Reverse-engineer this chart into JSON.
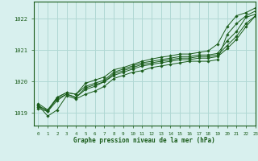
{
  "background_color": "#d8f0ee",
  "grid_color": "#b0d8d4",
  "line_color": "#1a5c1a",
  "xlabel": "Graphe pression niveau de la mer (hPa)",
  "xlim": [
    -0.5,
    23
  ],
  "ylim": [
    1018.6,
    1022.55
  ],
  "yticks": [
    1019,
    1020,
    1021,
    1022
  ],
  "xticks": [
    0,
    1,
    2,
    3,
    4,
    5,
    6,
    7,
    8,
    9,
    10,
    11,
    12,
    13,
    14,
    15,
    16,
    17,
    18,
    19,
    20,
    21,
    22,
    23
  ],
  "series": [
    [
      1019.25,
      1018.9,
      1019.1,
      1019.55,
      1019.45,
      1019.6,
      1019.7,
      1019.85,
      1020.1,
      1020.2,
      1020.3,
      1020.35,
      1020.45,
      1020.5,
      1020.55,
      1020.6,
      1020.65,
      1020.65,
      1020.65,
      1020.7,
      1021.5,
      1021.85,
      1022.1,
      1022.25
    ],
    [
      1019.25,
      1019.05,
      1019.5,
      1019.65,
      1019.6,
      1019.85,
      1019.95,
      1020.05,
      1020.3,
      1020.4,
      1020.5,
      1020.6,
      1020.65,
      1020.7,
      1020.75,
      1020.8,
      1020.8,
      1020.85,
      1020.85,
      1020.9,
      1021.3,
      1021.6,
      1022.05,
      1022.15
    ],
    [
      1019.2,
      1019.1,
      1019.45,
      1019.6,
      1019.5,
      1019.75,
      1019.85,
      1020.0,
      1020.25,
      1020.35,
      1020.45,
      1020.55,
      1020.6,
      1020.65,
      1020.7,
      1020.75,
      1020.75,
      1020.8,
      1020.8,
      1020.85,
      1021.15,
      1021.45,
      1021.85,
      1022.1
    ],
    [
      1019.15,
      1019.05,
      1019.4,
      1019.6,
      1019.5,
      1019.8,
      1019.9,
      1020.0,
      1020.2,
      1020.3,
      1020.4,
      1020.5,
      1020.55,
      1020.6,
      1020.65,
      1020.7,
      1020.7,
      1020.75,
      1020.75,
      1020.8,
      1021.05,
      1021.35,
      1021.75,
      1022.1
    ],
    [
      1019.3,
      1019.1,
      1019.5,
      1019.65,
      1019.6,
      1019.95,
      1020.05,
      1020.15,
      1020.38,
      1020.45,
      1020.55,
      1020.65,
      1020.72,
      1020.78,
      1020.82,
      1020.88,
      1020.88,
      1020.93,
      1020.98,
      1021.2,
      1021.75,
      1022.1,
      1022.2,
      1022.35
    ]
  ]
}
